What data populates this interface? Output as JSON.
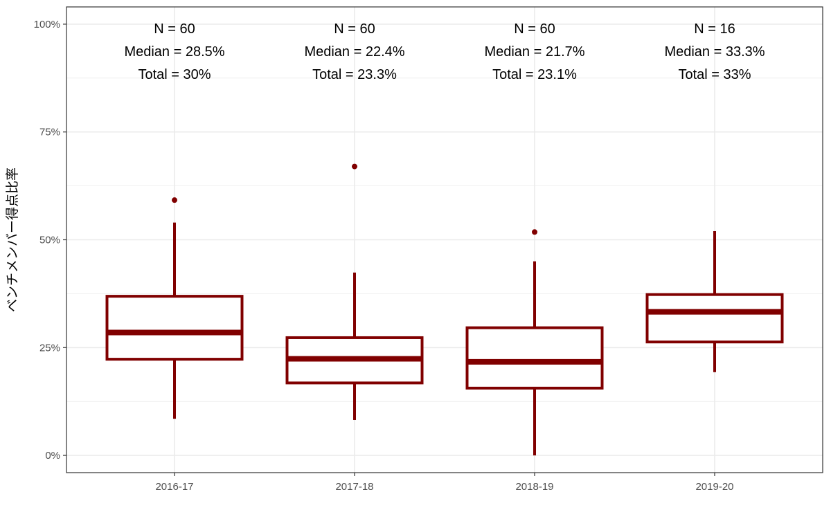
{
  "chart_data": {
    "type": "boxplot",
    "title": "",
    "xlabel": "",
    "ylabel": "ベンチメンバー得点比率",
    "ylim": [
      -0.04,
      1.04
    ],
    "y_ticks": [
      0,
      0.25,
      0.5,
      0.75,
      1.0
    ],
    "y_tick_labels": [
      "0%",
      "25%",
      "50%",
      "75%",
      "100%"
    ],
    "y_minor_ticks": [
      0.125,
      0.375,
      0.625,
      0.875
    ],
    "grid": true,
    "legend": "none",
    "colors": {
      "box": "#800000",
      "grid": "#ebebeb",
      "panel_border": "#333333"
    },
    "categories": [
      "2016-17",
      "2017-18",
      "2018-19",
      "2019-20"
    ],
    "boxes": [
      {
        "category": "2016-17",
        "lower_whisker": 0.085,
        "q1": 0.223,
        "median": 0.285,
        "q3": 0.369,
        "upper_whisker": 0.54,
        "outliers": [
          0.592
        ]
      },
      {
        "category": "2017-18",
        "lower_whisker": 0.082,
        "q1": 0.168,
        "median": 0.224,
        "q3": 0.273,
        "upper_whisker": 0.424,
        "outliers": [
          0.67
        ]
      },
      {
        "category": "2018-19",
        "lower_whisker": 0.0,
        "q1": 0.156,
        "median": 0.217,
        "q3": 0.296,
        "upper_whisker": 0.45,
        "outliers": [
          0.518
        ]
      },
      {
        "category": "2019-20",
        "lower_whisker": 0.193,
        "q1": 0.263,
        "median": 0.333,
        "q3": 0.373,
        "upper_whisker": 0.52,
        "outliers": []
      }
    ],
    "annotations": [
      {
        "category": "2016-17",
        "lines": [
          "N = 60",
          "Median = 28.5%",
          "Total = 30%"
        ]
      },
      {
        "category": "2017-18",
        "lines": [
          "N = 60",
          "Median = 22.4%",
          "Total = 23.3%"
        ]
      },
      {
        "category": "2018-19",
        "lines": [
          "N = 60",
          "Median = 21.7%",
          "Total = 23.1%"
        ]
      },
      {
        "category": "2019-20",
        "lines": [
          "N = 16",
          "Median = 33.3%",
          "Total = 33%"
        ]
      }
    ]
  }
}
